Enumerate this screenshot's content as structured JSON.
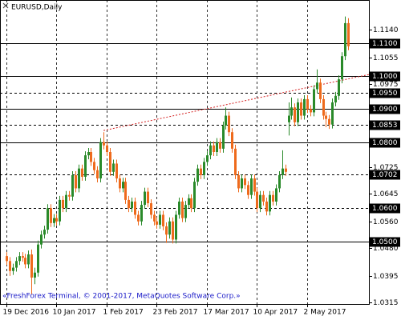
{
  "chart_data": {
    "type": "candlestick",
    "title": "EURUSD,Daily",
    "footer": "«FreshForex Terminal, © 2001-2017, MetaQuotes Software Corp.»",
    "categories": [
      "19 Dec 2016",
      null,
      null,
      null,
      null,
      null,
      null,
      null,
      null,
      null,
      null,
      null,
      null,
      null,
      null,
      null,
      "10 Jan 2017",
      null,
      null,
      null,
      null,
      null,
      null,
      null,
      null,
      null,
      null,
      null,
      null,
      null,
      null,
      null,
      "1 Feb 2017",
      null,
      null,
      null,
      null,
      null,
      null,
      null,
      null,
      null,
      null,
      null,
      null,
      null,
      null,
      null,
      "23 Feb 2017",
      null,
      null,
      null,
      null,
      null,
      null,
      null,
      null,
      null,
      null,
      null,
      null,
      null,
      null,
      null,
      "17 Mar 2017",
      null,
      null,
      null,
      null,
      null,
      null,
      null,
      null,
      null,
      null,
      null,
      null,
      null,
      null,
      null,
      "10 Apr 2017",
      null,
      null,
      null,
      null,
      null,
      null,
      null,
      null,
      null,
      null,
      null,
      null,
      null,
      null,
      null,
      "2 May 2017",
      null,
      null,
      null,
      null,
      null,
      null,
      null,
      null,
      null,
      null,
      null,
      null,
      null
    ],
    "ohlc": [
      [
        1.0455,
        1.0467,
        1.0428,
        1.044
      ],
      [
        1.044,
        1.0452,
        1.0395,
        1.041
      ],
      [
        1.041,
        1.0432,
        1.0398,
        1.042
      ],
      [
        1.042,
        1.0452,
        1.0408,
        1.044
      ],
      [
        1.044,
        1.0467,
        1.0428,
        1.0455
      ],
      [
        1.0455,
        1.0467,
        1.0438,
        1.045
      ],
      [
        1.045,
        1.0462,
        1.0418,
        1.043
      ],
      [
        1.043,
        1.0472,
        1.0418,
        1.046
      ],
      [
        1.046,
        1.0475,
        1.034,
        1.039
      ],
      [
        1.039,
        1.042,
        1.037,
        1.0405
      ],
      [
        1.0405,
        1.0502,
        1.0393,
        1.049
      ],
      [
        1.049,
        1.0532,
        1.0478,
        1.052
      ],
      [
        1.052,
        1.0547,
        1.0508,
        1.0535
      ],
      [
        1.0535,
        1.0612,
        1.0523,
        1.06
      ],
      [
        1.06,
        1.0612,
        1.0543,
        1.0555
      ],
      [
        1.0555,
        1.0582,
        1.0543,
        1.057
      ],
      [
        1.057,
        1.0582,
        1.0548,
        1.056
      ],
      [
        1.056,
        1.0637,
        1.0548,
        1.0625
      ],
      [
        1.0625,
        1.0637,
        1.0588,
        1.06
      ],
      [
        1.06,
        1.0652,
        1.0588,
        1.064
      ],
      [
        1.064,
        1.0652,
        1.0623,
        1.0635
      ],
      [
        1.0635,
        1.0712,
        1.0623,
        1.07
      ],
      [
        1.07,
        1.0712,
        1.0648,
        1.066
      ],
      [
        1.066,
        1.0732,
        1.0648,
        1.072
      ],
      [
        1.072,
        1.0732,
        1.0683,
        1.0695
      ],
      [
        1.0695,
        1.0772,
        1.0683,
        1.076
      ],
      [
        1.076,
        1.0782,
        1.0748,
        1.077
      ],
      [
        1.077,
        1.0782,
        1.0728,
        1.074
      ],
      [
        1.074,
        1.0752,
        1.0703,
        1.0715
      ],
      [
        1.0715,
        1.0727,
        1.0678,
        1.069
      ],
      [
        1.069,
        1.0812,
        1.0678,
        1.08
      ],
      [
        1.08,
        1.083,
        1.0778,
        1.079
      ],
      [
        1.079,
        1.0802,
        1.0758,
        1.077
      ],
      [
        1.077,
        1.0782,
        1.0698,
        1.071
      ],
      [
        1.071,
        1.0747,
        1.0698,
        1.0735
      ],
      [
        1.0735,
        1.0747,
        1.0678,
        1.069
      ],
      [
        1.069,
        1.0702,
        1.0648,
        1.066
      ],
      [
        1.066,
        1.0692,
        1.0648,
        1.068
      ],
      [
        1.068,
        1.0692,
        1.0613,
        1.0625
      ],
      [
        1.0625,
        1.0637,
        1.0588,
        1.06
      ],
      [
        1.06,
        1.0632,
        1.0588,
        1.062
      ],
      [
        1.062,
        1.0632,
        1.0568,
        1.058
      ],
      [
        1.058,
        1.0592,
        1.0548,
        1.056
      ],
      [
        1.056,
        1.0622,
        1.0548,
        1.061
      ],
      [
        1.061,
        1.0662,
        1.0598,
        1.065
      ],
      [
        1.065,
        1.0662,
        1.0603,
        1.0615
      ],
      [
        1.0615,
        1.0627,
        1.0568,
        1.058
      ],
      [
        1.058,
        1.0592,
        1.0548,
        1.056
      ],
      [
        1.056,
        1.0572,
        1.0538,
        1.055
      ],
      [
        1.055,
        1.0592,
        1.0538,
        1.058
      ],
      [
        1.058,
        1.0592,
        1.0533,
        1.0545
      ],
      [
        1.0545,
        1.0557,
        1.0495,
        1.052
      ],
      [
        1.052,
        1.0572,
        1.0508,
        1.056
      ],
      [
        1.056,
        1.0572,
        1.0493,
        1.0505
      ],
      [
        1.0505,
        1.0592,
        1.0493,
        1.058
      ],
      [
        1.058,
        1.0632,
        1.0568,
        1.062
      ],
      [
        1.062,
        1.0632,
        1.0558,
        1.057
      ],
      [
        1.057,
        1.0622,
        1.0558,
        1.061
      ],
      [
        1.061,
        1.0642,
        1.0598,
        1.063
      ],
      [
        1.063,
        1.0642,
        1.0588,
        1.06
      ],
      [
        1.06,
        1.0692,
        1.0588,
        1.068
      ],
      [
        1.068,
        1.0732,
        1.0668,
        1.072
      ],
      [
        1.072,
        1.0732,
        1.0688,
        1.07
      ],
      [
        1.07,
        1.0752,
        1.0688,
        1.074
      ],
      [
        1.074,
        1.0772,
        1.0728,
        1.076
      ],
      [
        1.076,
        1.0802,
        1.0748,
        1.079
      ],
      [
        1.079,
        1.0802,
        1.0758,
        1.077
      ],
      [
        1.077,
        1.0812,
        1.0758,
        1.08
      ],
      [
        1.08,
        1.0812,
        1.0768,
        1.078
      ],
      [
        1.078,
        1.0862,
        1.0768,
        1.085
      ],
      [
        1.085,
        1.0905,
        1.0838,
        1.088
      ],
      [
        1.088,
        1.0892,
        1.0818,
        1.083
      ],
      [
        1.083,
        1.0842,
        1.0768,
        1.078
      ],
      [
        1.078,
        1.0792,
        1.0688,
        1.07
      ],
      [
        1.07,
        1.0712,
        1.0648,
        1.066
      ],
      [
        1.066,
        1.0702,
        1.0648,
        1.069
      ],
      [
        1.069,
        1.0702,
        1.0658,
        1.067
      ],
      [
        1.067,
        1.0682,
        1.0628,
        1.064
      ],
      [
        1.064,
        1.0702,
        1.0628,
        1.069
      ],
      [
        1.069,
        1.0702,
        1.0638,
        1.065
      ],
      [
        1.065,
        1.0662,
        1.0588,
        1.06
      ],
      [
        1.06,
        1.0652,
        1.0588,
        1.064
      ],
      [
        1.064,
        1.0652,
        1.0608,
        1.062
      ],
      [
        1.062,
        1.0632,
        1.0578,
        1.059
      ],
      [
        1.059,
        1.0652,
        1.0578,
        1.064
      ],
      [
        1.064,
        1.0652,
        1.0608,
        1.062
      ],
      [
        1.062,
        1.0672,
        1.0608,
        1.066
      ],
      [
        1.066,
        1.0712,
        1.0648,
        1.07
      ],
      [
        1.07,
        1.0775,
        1.0688,
        1.072
      ],
      [
        1.072,
        1.0732,
        1.0698,
        1.071
      ],
      [
        1.086,
        1.092,
        1.082,
        1.088
      ],
      [
        1.088,
        1.0935,
        1.0868,
        1.0905
      ],
      [
        1.0905,
        1.0917,
        1.0848,
        1.086
      ],
      [
        1.086,
        1.0932,
        1.0848,
        1.092
      ],
      [
        1.092,
        1.0932,
        1.0868,
        1.088
      ],
      [
        1.088,
        1.0942,
        1.0868,
        1.093
      ],
      [
        1.093,
        1.0942,
        1.0888,
        1.09
      ],
      [
        1.09,
        1.0912,
        1.0878,
        1.089
      ],
      [
        1.089,
        1.0972,
        1.0878,
        1.096
      ],
      [
        1.096,
        1.102,
        1.0948,
        1.098
      ],
      [
        1.098,
        1.0992,
        1.0918,
        1.093
      ],
      [
        1.093,
        1.0942,
        1.0868,
        1.088
      ],
      [
        1.088,
        1.0892,
        1.0845,
        1.087
      ],
      [
        1.087,
        1.0882,
        1.084,
        1.0853
      ],
      [
        1.0853,
        1.0932,
        1.0841,
        1.092
      ],
      [
        1.092,
        1.0952,
        1.0908,
        1.094
      ],
      [
        1.094,
        1.1002,
        1.0928,
        1.099
      ],
      [
        1.099,
        1.1072,
        1.0978,
        1.106
      ],
      [
        1.106,
        1.118,
        1.1048,
        1.116
      ],
      [
        1.116,
        1.1175,
        1.1078,
        1.109
      ]
    ],
    "up_color": "#2a8a2a",
    "down_color": "#ee6a1c",
    "ylim": [
      1.031,
      1.123
    ],
    "yticks": [
      {
        "value": 1.114,
        "label": "1.1140"
      },
      {
        "value": 1.1055,
        "label": "1.1055"
      },
      {
        "value": 1.0975,
        "label": "1.0975"
      },
      {
        "value": 1.0725,
        "label": "1.0725"
      },
      {
        "value": 1.0645,
        "label": "1.0645"
      },
      {
        "value": 1.056,
        "label": "1.0560"
      },
      {
        "value": 1.048,
        "label": "1.0480"
      },
      {
        "value": 1.0395,
        "label": "1.0395"
      },
      {
        "value": 1.0315,
        "label": "1.0315"
      }
    ],
    "levels": [
      {
        "value": 1.11,
        "label": "1.1100",
        "style": "solid"
      },
      {
        "value": 1.1,
        "label": "1.1000",
        "style": "solid"
      },
      {
        "value": 1.095,
        "label": "1.0950",
        "style": "dashed"
      },
      {
        "value": 1.09,
        "label": "1.0900",
        "style": "solid"
      },
      {
        "value": 1.0853,
        "label": "1.0853",
        "style": "dashed"
      },
      {
        "value": 1.08,
        "label": "1.0800",
        "style": "solid"
      },
      {
        "value": 1.0702,
        "label": "1.0702",
        "style": "dashed"
      },
      {
        "value": 1.06,
        "label": "1.0600",
        "style": "dashed"
      },
      {
        "value": 1.05,
        "label": "1.0500",
        "style": "solid"
      }
    ],
    "trendline": {
      "x": [
        31,
        116
      ],
      "y": [
        1.0835,
        1.1005
      ],
      "color": "#d42020"
    },
    "grid": true
  }
}
